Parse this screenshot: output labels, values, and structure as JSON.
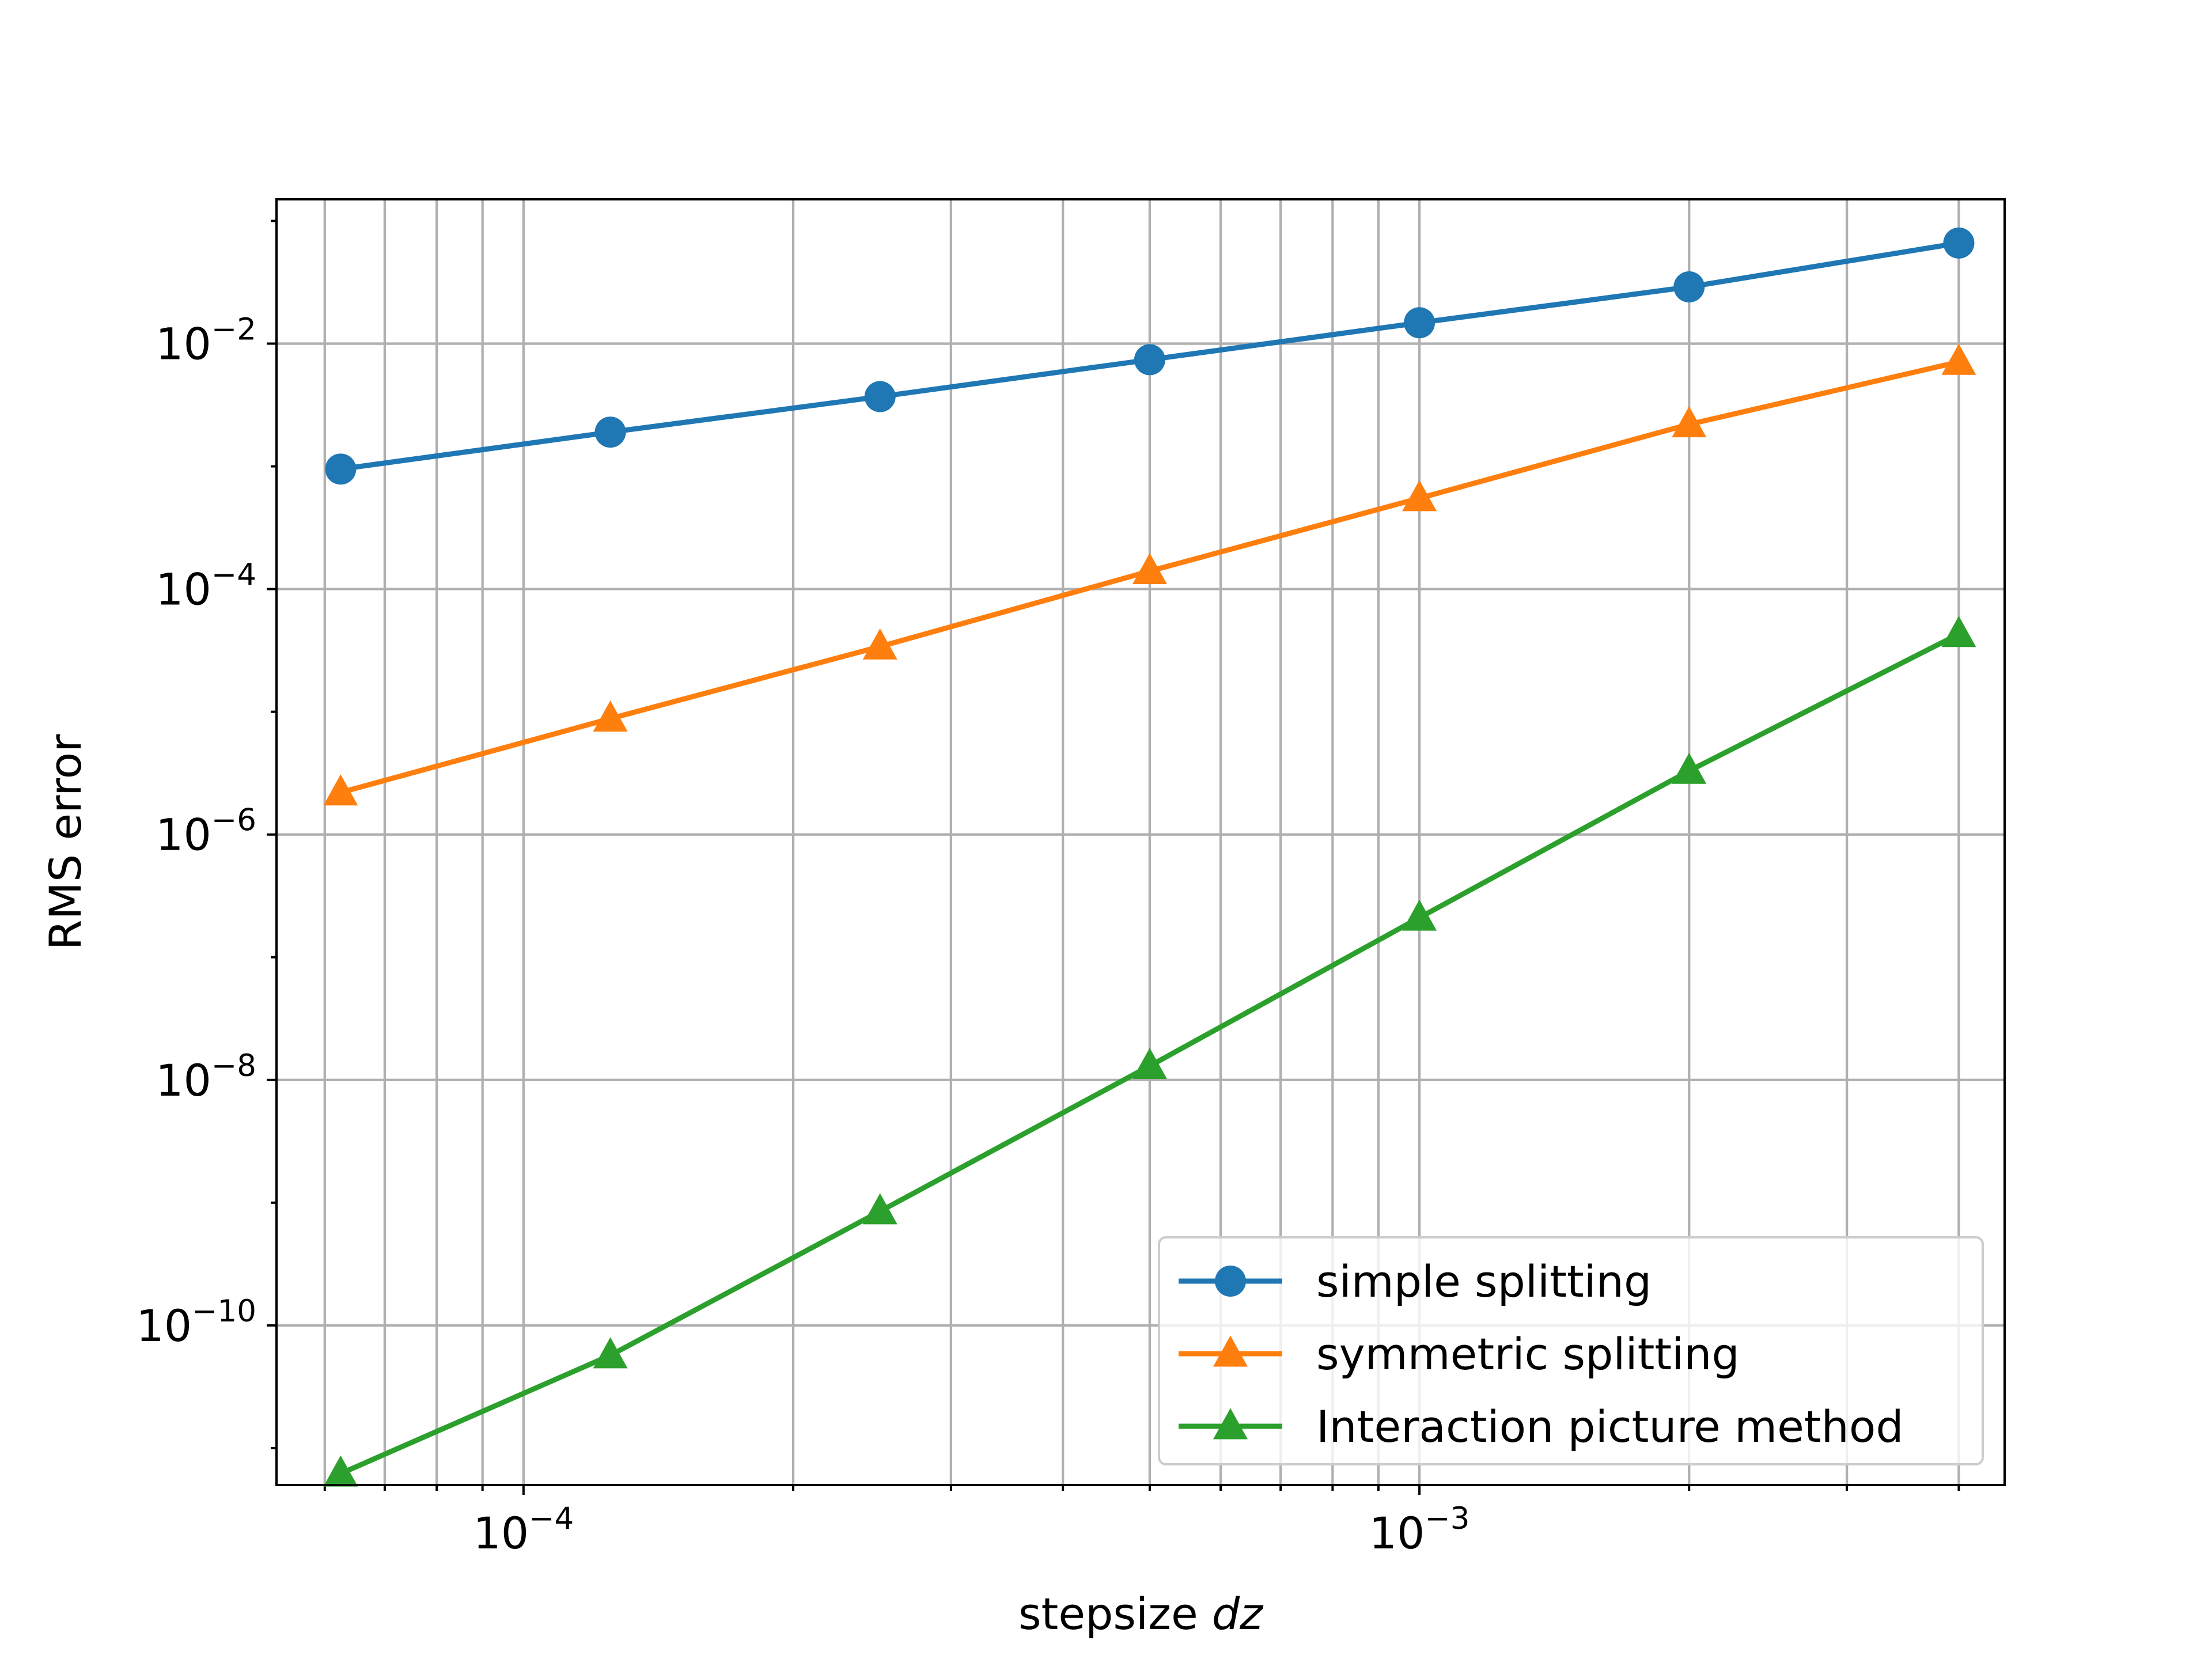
{
  "chart_data": {
    "type": "line",
    "title": "",
    "xlabel": "stepsize",
    "xlabel_var": "dz",
    "ylabel": "RMS error",
    "xscale": "log",
    "yscale": "log",
    "xlim": [
      5.3e-05,
      0.0045
    ],
    "ylim": [
      5e-12,
      0.15
    ],
    "grid": "both",
    "legend_position": "lower right",
    "x_ticks": [
      {
        "value": 0.0001,
        "base": "10",
        "exp": "−4"
      },
      {
        "value": 0.001,
        "base": "10",
        "exp": "−3"
      }
    ],
    "y_ticks": [
      {
        "value": 0.01,
        "base": "10",
        "exp": "−2"
      },
      {
        "value": 0.0001,
        "base": "10",
        "exp": "−4"
      },
      {
        "value": 1e-06,
        "base": "10",
        "exp": "−6"
      },
      {
        "value": 1e-08,
        "base": "10",
        "exp": "−8"
      },
      {
        "value": 1e-10,
        "base": "10",
        "exp": "−10"
      }
    ],
    "x": [
      6.25e-05,
      0.000125,
      0.00025,
      0.0005,
      0.001,
      0.002,
      0.004
    ],
    "series": [
      {
        "name": "simple splitting",
        "marker": "circle",
        "color": "#1f77b4",
        "values": [
          0.00095,
          0.0019,
          0.0037,
          0.0074,
          0.0148,
          0.029,
          0.066
        ]
      },
      {
        "name": "symmetric splitting",
        "marker": "triangle",
        "color": "#ff7f0e",
        "values": [
          2.2e-06,
          8.8e-06,
          3.4e-05,
          0.00014,
          0.00055,
          0.0022,
          0.0071
        ]
      },
      {
        "name": "Interaction picture method",
        "marker": "triangle",
        "color": "#2ca02c",
        "values": [
          6.2e-12,
          5.7e-11,
          8.5e-10,
          1.3e-08,
          2.1e-07,
          3.3e-06,
          4.3e-05
        ]
      }
    ]
  }
}
